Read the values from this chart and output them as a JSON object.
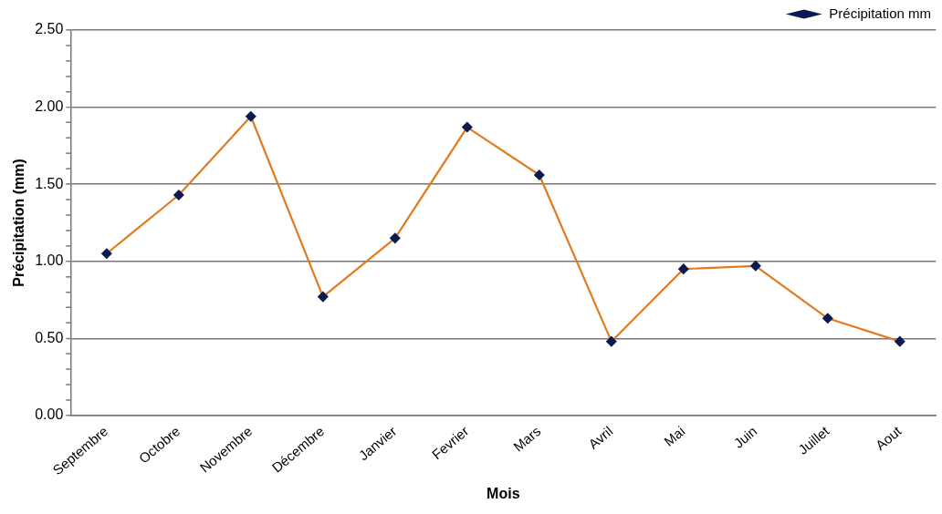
{
  "chart_data": {
    "type": "line",
    "xlabel": "Mois",
    "ylabel": "Précipitation (mm)",
    "categories": [
      "Septembre",
      "Octobre",
      "Novembre",
      "Décembre",
      "Janvier",
      "Fevrier",
      "Mars",
      "Avril",
      "Mai",
      "Juin",
      "Juillet",
      "Aout"
    ],
    "series": [
      {
        "name": "Précipitation mm",
        "color": "#e07b20",
        "values": [
          1.05,
          1.43,
          1.94,
          0.77,
          1.15,
          1.87,
          1.56,
          0.48,
          0.95,
          0.97,
          0.63,
          0.48
        ]
      }
    ],
    "ylim": [
      0,
      2.5
    ],
    "yticks": [
      {
        "value": 0,
        "label": "0.00"
      },
      {
        "value": 0.1,
        "label": null
      },
      {
        "value": 0.2,
        "label": null
      },
      {
        "value": 0.3,
        "label": null
      },
      {
        "value": 0.4,
        "label": null
      },
      {
        "value": 0.5,
        "label": "0.50"
      },
      {
        "value": 0.6,
        "label": null
      },
      {
        "value": 0.7,
        "label": null
      },
      {
        "value": 0.8,
        "label": null
      },
      {
        "value": 0.9,
        "label": null
      },
      {
        "value": 1,
        "label": "1.00"
      },
      {
        "value": 1.1,
        "label": null
      },
      {
        "value": 1.2,
        "label": null
      },
      {
        "value": 1.3,
        "label": null
      },
      {
        "value": 1.4,
        "label": null
      },
      {
        "value": 1.5,
        "label": "1.50"
      },
      {
        "value": 1.6,
        "label": null
      },
      {
        "value": 1.7,
        "label": null
      },
      {
        "value": 1.8,
        "label": null
      },
      {
        "value": 1.9,
        "label": null
      },
      {
        "value": 2,
        "label": "2.00"
      },
      {
        "value": 2.1,
        "label": null
      },
      {
        "value": 2.2,
        "label": null
      },
      {
        "value": 2.3,
        "label": null
      },
      {
        "value": 2.4,
        "label": null
      },
      {
        "value": 2.5,
        "label": "2.50"
      }
    ],
    "grid": "y",
    "legend": "top right",
    "marker": "diamond",
    "line_style": "solid"
  }
}
